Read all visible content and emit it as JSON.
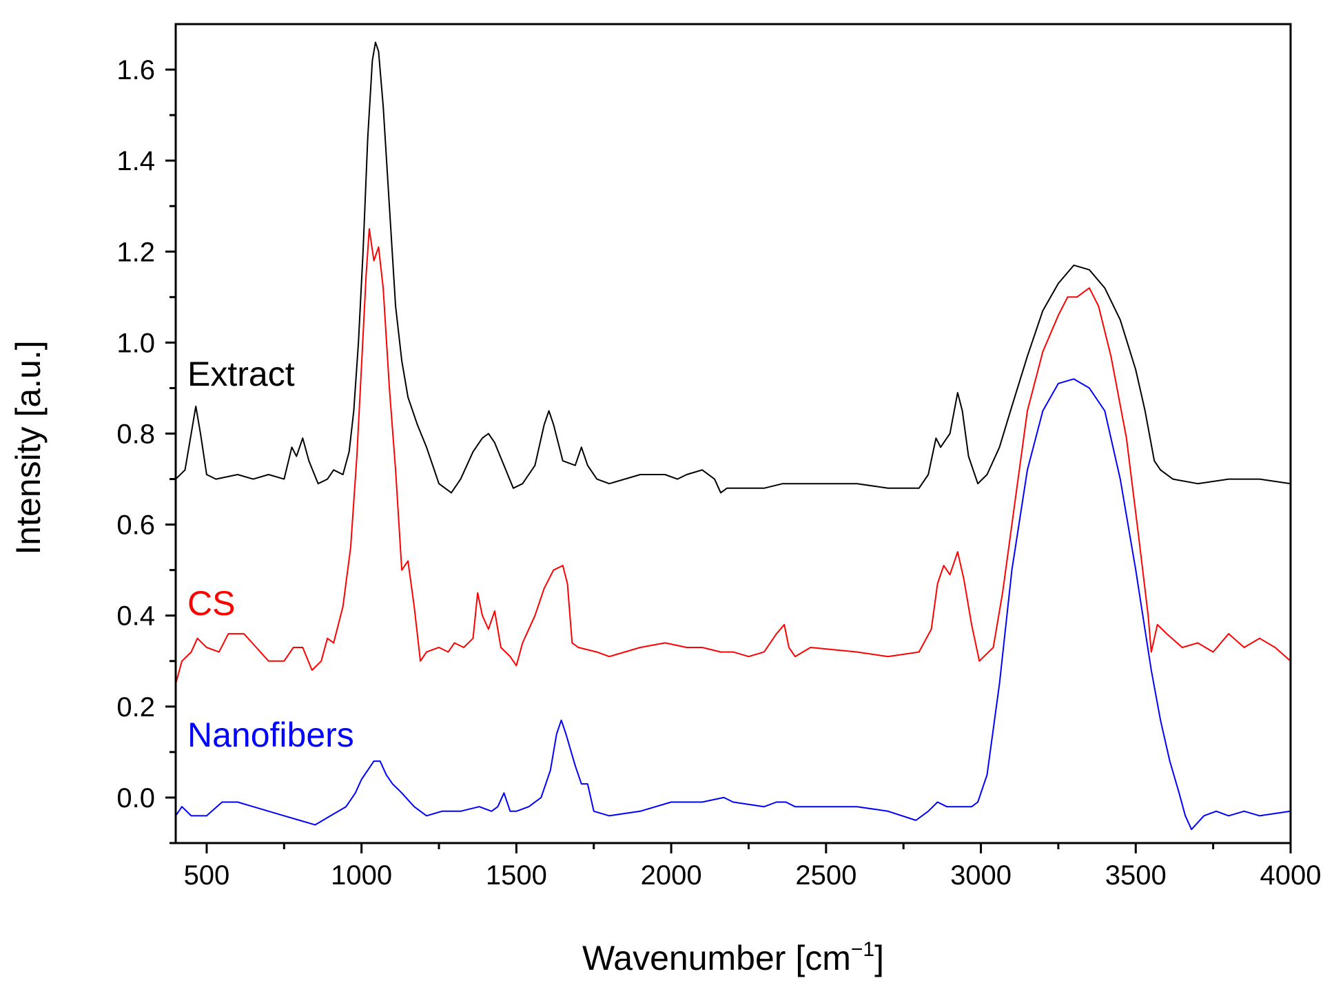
{
  "chart_data": {
    "type": "line",
    "title": "",
    "xlabel": "Wavenumber [cm",
    "xlabel_sup": "−1",
    "xlabel_close": "]",
    "ylabel": "Intensity [a.u.]",
    "xlim": [
      400,
      4000
    ],
    "ylim": [
      -0.1,
      1.7
    ],
    "x_ticks": [
      500,
      1000,
      1500,
      2000,
      2500,
      3000,
      3500,
      4000
    ],
    "y_ticks": [
      0.0,
      0.2,
      0.4,
      0.6,
      0.8,
      1.0,
      1.2,
      1.4,
      1.6
    ],
    "x_tick_labels": [
      "500",
      "1000",
      "1500",
      "2000",
      "2500",
      "3000",
      "3500",
      "4000"
    ],
    "y_tick_labels": [
      "0.0",
      "0.2",
      "0.4",
      "0.6",
      "0.8",
      "1.0",
      "1.2",
      "1.4",
      "1.6"
    ],
    "grid": false,
    "legend": "inline labels at left",
    "series": [
      {
        "name": "Extract",
        "color": "#000000",
        "points": [
          [
            400,
            0.7
          ],
          [
            430,
            0.72
          ],
          [
            450,
            0.8
          ],
          [
            465,
            0.86
          ],
          [
            480,
            0.8
          ],
          [
            500,
            0.71
          ],
          [
            530,
            0.7
          ],
          [
            600,
            0.71
          ],
          [
            650,
            0.7
          ],
          [
            700,
            0.71
          ],
          [
            750,
            0.7
          ],
          [
            775,
            0.77
          ],
          [
            790,
            0.75
          ],
          [
            810,
            0.79
          ],
          [
            830,
            0.74
          ],
          [
            860,
            0.69
          ],
          [
            890,
            0.7
          ],
          [
            910,
            0.72
          ],
          [
            940,
            0.71
          ],
          [
            960,
            0.76
          ],
          [
            975,
            0.85
          ],
          [
            990,
            1.0
          ],
          [
            1005,
            1.2
          ],
          [
            1020,
            1.45
          ],
          [
            1035,
            1.62
          ],
          [
            1045,
            1.66
          ],
          [
            1055,
            1.64
          ],
          [
            1070,
            1.52
          ],
          [
            1090,
            1.3
          ],
          [
            1110,
            1.08
          ],
          [
            1130,
            0.96
          ],
          [
            1150,
            0.88
          ],
          [
            1180,
            0.82
          ],
          [
            1210,
            0.77
          ],
          [
            1250,
            0.69
          ],
          [
            1290,
            0.67
          ],
          [
            1320,
            0.7
          ],
          [
            1360,
            0.76
          ],
          [
            1390,
            0.79
          ],
          [
            1410,
            0.8
          ],
          [
            1430,
            0.78
          ],
          [
            1460,
            0.73
          ],
          [
            1490,
            0.68
          ],
          [
            1520,
            0.69
          ],
          [
            1560,
            0.73
          ],
          [
            1590,
            0.82
          ],
          [
            1605,
            0.85
          ],
          [
            1620,
            0.82
          ],
          [
            1650,
            0.74
          ],
          [
            1690,
            0.73
          ],
          [
            1710,
            0.77
          ],
          [
            1730,
            0.73
          ],
          [
            1760,
            0.7
          ],
          [
            1800,
            0.69
          ],
          [
            1900,
            0.71
          ],
          [
            1980,
            0.71
          ],
          [
            2020,
            0.7
          ],
          [
            2050,
            0.71
          ],
          [
            2100,
            0.72
          ],
          [
            2140,
            0.7
          ],
          [
            2160,
            0.67
          ],
          [
            2180,
            0.68
          ],
          [
            2300,
            0.68
          ],
          [
            2360,
            0.69
          ],
          [
            2400,
            0.69
          ],
          [
            2600,
            0.69
          ],
          [
            2700,
            0.68
          ],
          [
            2800,
            0.68
          ],
          [
            2830,
            0.71
          ],
          [
            2855,
            0.79
          ],
          [
            2870,
            0.77
          ],
          [
            2900,
            0.8
          ],
          [
            2925,
            0.89
          ],
          [
            2940,
            0.85
          ],
          [
            2960,
            0.75
          ],
          [
            2990,
            0.69
          ],
          [
            3020,
            0.71
          ],
          [
            3060,
            0.77
          ],
          [
            3100,
            0.86
          ],
          [
            3150,
            0.97
          ],
          [
            3200,
            1.07
          ],
          [
            3250,
            1.13
          ],
          [
            3300,
            1.17
          ],
          [
            3350,
            1.16
          ],
          [
            3400,
            1.12
          ],
          [
            3450,
            1.05
          ],
          [
            3500,
            0.94
          ],
          [
            3530,
            0.85
          ],
          [
            3560,
            0.74
          ],
          [
            3580,
            0.72
          ],
          [
            3620,
            0.7
          ],
          [
            3700,
            0.69
          ],
          [
            3800,
            0.7
          ],
          [
            3900,
            0.7
          ],
          [
            4000,
            0.69
          ]
        ]
      },
      {
        "name": "CS",
        "color": "#ff0000",
        "points": [
          [
            400,
            0.25
          ],
          [
            420,
            0.3
          ],
          [
            450,
            0.32
          ],
          [
            470,
            0.35
          ],
          [
            500,
            0.33
          ],
          [
            540,
            0.32
          ],
          [
            570,
            0.36
          ],
          [
            620,
            0.36
          ],
          [
            660,
            0.33
          ],
          [
            700,
            0.3
          ],
          [
            750,
            0.3
          ],
          [
            780,
            0.33
          ],
          [
            810,
            0.33
          ],
          [
            840,
            0.28
          ],
          [
            870,
            0.3
          ],
          [
            890,
            0.35
          ],
          [
            910,
            0.34
          ],
          [
            940,
            0.42
          ],
          [
            965,
            0.55
          ],
          [
            985,
            0.75
          ],
          [
            1000,
            0.95
          ],
          [
            1015,
            1.15
          ],
          [
            1025,
            1.25
          ],
          [
            1040,
            1.18
          ],
          [
            1055,
            1.21
          ],
          [
            1070,
            1.12
          ],
          [
            1090,
            0.9
          ],
          [
            1110,
            0.72
          ],
          [
            1130,
            0.5
          ],
          [
            1150,
            0.52
          ],
          [
            1170,
            0.42
          ],
          [
            1190,
            0.3
          ],
          [
            1210,
            0.32
          ],
          [
            1250,
            0.33
          ],
          [
            1280,
            0.32
          ],
          [
            1300,
            0.34
          ],
          [
            1330,
            0.33
          ],
          [
            1360,
            0.35
          ],
          [
            1375,
            0.45
          ],
          [
            1390,
            0.4
          ],
          [
            1410,
            0.37
          ],
          [
            1430,
            0.41
          ],
          [
            1450,
            0.33
          ],
          [
            1480,
            0.31
          ],
          [
            1500,
            0.29
          ],
          [
            1520,
            0.34
          ],
          [
            1560,
            0.4
          ],
          [
            1590,
            0.46
          ],
          [
            1620,
            0.5
          ],
          [
            1650,
            0.51
          ],
          [
            1665,
            0.47
          ],
          [
            1680,
            0.34
          ],
          [
            1700,
            0.33
          ],
          [
            1760,
            0.32
          ],
          [
            1800,
            0.31
          ],
          [
            1900,
            0.33
          ],
          [
            1980,
            0.34
          ],
          [
            2050,
            0.33
          ],
          [
            2100,
            0.33
          ],
          [
            2160,
            0.32
          ],
          [
            2200,
            0.32
          ],
          [
            2250,
            0.31
          ],
          [
            2300,
            0.32
          ],
          [
            2340,
            0.36
          ],
          [
            2365,
            0.38
          ],
          [
            2380,
            0.33
          ],
          [
            2400,
            0.31
          ],
          [
            2450,
            0.33
          ],
          [
            2600,
            0.32
          ],
          [
            2700,
            0.31
          ],
          [
            2800,
            0.32
          ],
          [
            2840,
            0.37
          ],
          [
            2860,
            0.47
          ],
          [
            2880,
            0.51
          ],
          [
            2900,
            0.49
          ],
          [
            2925,
            0.54
          ],
          [
            2945,
            0.48
          ],
          [
            2970,
            0.38
          ],
          [
            2995,
            0.3
          ],
          [
            3010,
            0.31
          ],
          [
            3040,
            0.33
          ],
          [
            3070,
            0.45
          ],
          [
            3110,
            0.65
          ],
          [
            3150,
            0.85
          ],
          [
            3200,
            0.98
          ],
          [
            3250,
            1.06
          ],
          [
            3280,
            1.1
          ],
          [
            3310,
            1.1
          ],
          [
            3350,
            1.12
          ],
          [
            3380,
            1.08
          ],
          [
            3420,
            0.97
          ],
          [
            3470,
            0.79
          ],
          [
            3510,
            0.57
          ],
          [
            3540,
            0.4
          ],
          [
            3550,
            0.32
          ],
          [
            3570,
            0.38
          ],
          [
            3600,
            0.36
          ],
          [
            3650,
            0.33
          ],
          [
            3700,
            0.34
          ],
          [
            3750,
            0.32
          ],
          [
            3800,
            0.36
          ],
          [
            3850,
            0.33
          ],
          [
            3900,
            0.35
          ],
          [
            3950,
            0.33
          ],
          [
            4000,
            0.3
          ]
        ]
      },
      {
        "name": "Nanofibers",
        "color": "#0000ff",
        "points": [
          [
            400,
            -0.04
          ],
          [
            420,
            -0.02
          ],
          [
            450,
            -0.04
          ],
          [
            500,
            -0.04
          ],
          [
            550,
            -0.01
          ],
          [
            600,
            -0.01
          ],
          [
            650,
            -0.02
          ],
          [
            700,
            -0.03
          ],
          [
            750,
            -0.04
          ],
          [
            800,
            -0.05
          ],
          [
            850,
            -0.06
          ],
          [
            900,
            -0.04
          ],
          [
            950,
            -0.02
          ],
          [
            980,
            0.01
          ],
          [
            1000,
            0.04
          ],
          [
            1020,
            0.06
          ],
          [
            1040,
            0.08
          ],
          [
            1060,
            0.08
          ],
          [
            1080,
            0.05
          ],
          [
            1100,
            0.03
          ],
          [
            1130,
            0.01
          ],
          [
            1170,
            -0.02
          ],
          [
            1210,
            -0.04
          ],
          [
            1260,
            -0.03
          ],
          [
            1320,
            -0.03
          ],
          [
            1380,
            -0.02
          ],
          [
            1420,
            -0.03
          ],
          [
            1440,
            -0.02
          ],
          [
            1460,
            0.01
          ],
          [
            1480,
            -0.03
          ],
          [
            1500,
            -0.03
          ],
          [
            1540,
            -0.02
          ],
          [
            1580,
            0.0
          ],
          [
            1610,
            0.06
          ],
          [
            1630,
            0.14
          ],
          [
            1645,
            0.17
          ],
          [
            1660,
            0.14
          ],
          [
            1690,
            0.07
          ],
          [
            1710,
            0.03
          ],
          [
            1730,
            0.03
          ],
          [
            1750,
            -0.03
          ],
          [
            1800,
            -0.04
          ],
          [
            1900,
            -0.03
          ],
          [
            2000,
            -0.01
          ],
          [
            2100,
            -0.01
          ],
          [
            2170,
            0.0
          ],
          [
            2200,
            -0.01
          ],
          [
            2300,
            -0.02
          ],
          [
            2340,
            -0.01
          ],
          [
            2370,
            -0.01
          ],
          [
            2400,
            -0.02
          ],
          [
            2500,
            -0.02
          ],
          [
            2600,
            -0.02
          ],
          [
            2700,
            -0.03
          ],
          [
            2790,
            -0.05
          ],
          [
            2830,
            -0.03
          ],
          [
            2860,
            -0.01
          ],
          [
            2890,
            -0.02
          ],
          [
            2930,
            -0.02
          ],
          [
            2970,
            -0.02
          ],
          [
            2990,
            -0.01
          ],
          [
            3020,
            0.05
          ],
          [
            3060,
            0.25
          ],
          [
            3100,
            0.5
          ],
          [
            3150,
            0.72
          ],
          [
            3200,
            0.85
          ],
          [
            3250,
            0.91
          ],
          [
            3300,
            0.92
          ],
          [
            3350,
            0.9
          ],
          [
            3400,
            0.85
          ],
          [
            3450,
            0.7
          ],
          [
            3500,
            0.5
          ],
          [
            3550,
            0.28
          ],
          [
            3580,
            0.17
          ],
          [
            3610,
            0.08
          ],
          [
            3640,
            0.01
          ],
          [
            3660,
            -0.04
          ],
          [
            3680,
            -0.07
          ],
          [
            3720,
            -0.04
          ],
          [
            3760,
            -0.03
          ],
          [
            3800,
            -0.04
          ],
          [
            3850,
            -0.03
          ],
          [
            3900,
            -0.04
          ],
          [
            4000,
            -0.03
          ]
        ]
      }
    ],
    "labels": [
      {
        "text": "Extract",
        "color": "#000000"
      },
      {
        "text": "CS",
        "color": "#ff0000"
      },
      {
        "text": "Nanofibers",
        "color": "#0000ff"
      }
    ]
  }
}
